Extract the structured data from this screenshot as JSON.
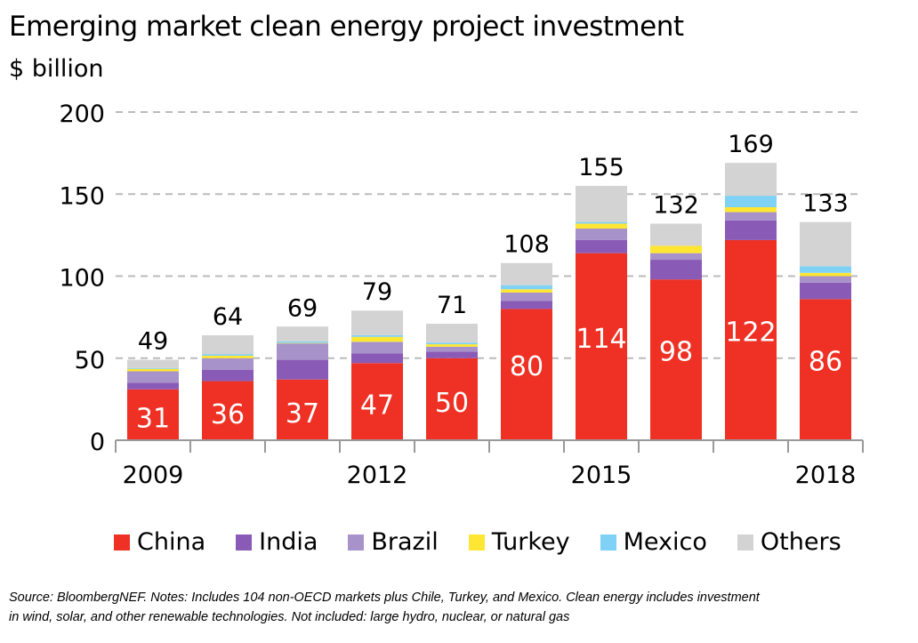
{
  "chart_data": {
    "type": "bar",
    "stacked": true,
    "title": "Emerging market clean energy project investment",
    "ylabel": "$ billion",
    "xlabel": "",
    "ylim": [
      0,
      200
    ],
    "yticks": [
      0,
      50,
      100,
      150,
      200
    ],
    "grid": true,
    "legend_position": "bottom",
    "categories": [
      "2009",
      "2010",
      "2011",
      "2012",
      "2013",
      "2014",
      "2015",
      "2016",
      "2017",
      "2018"
    ],
    "xtick_labels": [
      "2009",
      "",
      "",
      "2012",
      "",
      "",
      "2015",
      "",
      "",
      "2018"
    ],
    "totals": [
      49,
      64,
      69,
      79,
      71,
      108,
      155,
      132,
      169,
      133
    ],
    "series": [
      {
        "name": "China",
        "color": "#ee3124",
        "values": [
          31,
          36,
          37,
          47,
          50,
          80,
          114,
          98,
          122,
          86
        ],
        "labeled": true
      },
      {
        "name": "India",
        "color": "#8a5bb6",
        "values": [
          4,
          7,
          12,
          6,
          4,
          5,
          8,
          12,
          12,
          10
        ]
      },
      {
        "name": "Brazil",
        "color": "#a793c9",
        "values": [
          7,
          7,
          10,
          7,
          3,
          5,
          7,
          4,
          5,
          4
        ]
      },
      {
        "name": "Turkey",
        "color": "#ffe632",
        "values": [
          1.5,
          1.5,
          0.3,
          3,
          1.5,
          2,
          3,
          4.5,
          3,
          2
        ]
      },
      {
        "name": "Mexico",
        "color": "#7fd1f5",
        "values": [
          0.5,
          1,
          1,
          1,
          1,
          2.5,
          1,
          0,
          7,
          4
        ]
      },
      {
        "name": "Others",
        "color": "#d3d3d3",
        "values": [
          5,
          11.5,
          9,
          15,
          11.5,
          13.5,
          22,
          13.5,
          20,
          27
        ]
      }
    ]
  },
  "footnote": {
    "line1": "Source: BloombergNEF. Notes: Includes 104 non-OECD markets plus Chile, Turkey, and Mexico. Clean energy includes investment",
    "line2": "in wind, solar, and other renewable technologies. Not included: large hydro, nuclear, or natural gas"
  }
}
